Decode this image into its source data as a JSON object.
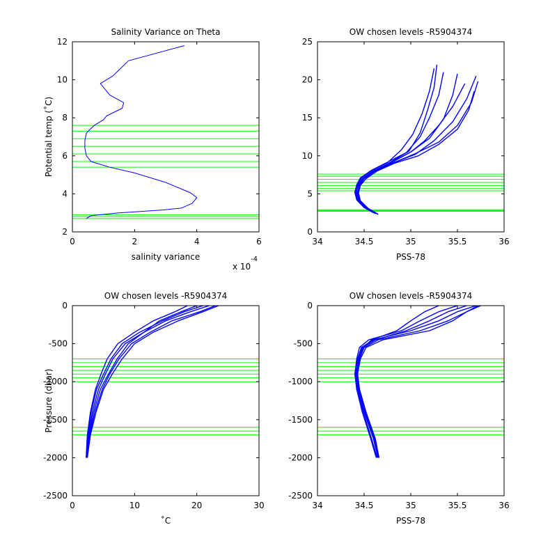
{
  "colors": {
    "profile": "#0000ff",
    "levels": "#00ff00",
    "axis": "#000000"
  },
  "chart_data": [
    {
      "type": "line",
      "title": "Salinity Variance on Theta",
      "xlabel": "salinity variance",
      "ylabel": "Potential temp (˚C)",
      "exponent_base": "x 10",
      "exponent_power": "-4",
      "xlim": [
        0,
        6
      ],
      "ylim": [
        2,
        12
      ],
      "xticks": [
        0,
        2,
        4,
        6
      ],
      "yticks": [
        2,
        4,
        6,
        8,
        10,
        12
      ],
      "series": [
        {
          "x": [
            0.45,
            0.6,
            1.5,
            2.9,
            3.5,
            3.85,
            4.0,
            3.8,
            3.0,
            2.0,
            1.2,
            0.6,
            0.45,
            0.4,
            0.4,
            0.45,
            0.7,
            1.0,
            1.1,
            1.6,
            1.65,
            1.2,
            0.9,
            1.3,
            1.8,
            3.6
          ],
          "y": [
            2.7,
            2.85,
            3.0,
            3.15,
            3.25,
            3.5,
            3.8,
            4.05,
            4.6,
            5.1,
            5.4,
            5.7,
            6.0,
            6.4,
            6.8,
            7.2,
            7.6,
            7.9,
            8.1,
            8.5,
            8.8,
            9.2,
            9.8,
            10.2,
            11.0,
            11.8
          ]
        }
      ],
      "hlines": [
        2.7,
        2.8,
        2.9,
        5.4,
        5.7,
        6.1,
        6.5,
        6.9,
        7.3,
        7.6
      ]
    },
    {
      "type": "line",
      "title": "OW chosen levels -R5904374",
      "xlabel": "PSS-78",
      "xlim": [
        34,
        36
      ],
      "ylim": [
        0,
        25
      ],
      "xticks": [
        34,
        34.5,
        35,
        35.5,
        36
      ],
      "yticks": [
        0,
        5,
        10,
        15,
        20,
        25
      ],
      "series": [
        {
          "x": [
            34.65,
            34.55,
            34.45,
            34.42,
            34.43,
            34.48,
            34.6,
            34.78,
            35.0,
            35.15,
            35.3,
            35.45,
            35.58
          ],
          "y": [
            2.3,
            3.0,
            4.0,
            5.0,
            6.0,
            7.0,
            8.0,
            9.0,
            10.5,
            12.0,
            14.0,
            16.5,
            19.5
          ]
        },
        {
          "x": [
            34.6,
            34.5,
            34.42,
            34.4,
            34.42,
            34.46,
            34.58,
            34.74,
            34.95,
            35.1,
            35.2,
            35.3,
            35.35
          ],
          "y": [
            2.5,
            3.2,
            4.2,
            5.2,
            6.2,
            7.1,
            8.1,
            9.1,
            10.4,
            12.5,
            15.0,
            18.0,
            21.0
          ]
        },
        {
          "x": [
            34.62,
            34.52,
            34.45,
            34.43,
            34.45,
            34.5,
            34.62,
            34.8,
            35.05,
            35.25,
            35.45,
            35.6,
            35.7
          ],
          "y": [
            2.4,
            3.1,
            4.1,
            5.1,
            6.1,
            7.0,
            8.0,
            9.0,
            10.2,
            12.0,
            14.5,
            17.5,
            20.5
          ]
        },
        {
          "x": [
            34.63,
            34.53,
            34.44,
            34.41,
            34.44,
            34.49,
            34.6,
            34.76,
            34.98,
            35.1,
            35.18,
            35.25,
            35.28
          ],
          "y": [
            2.4,
            3.1,
            4.1,
            5.1,
            6.1,
            7.0,
            8.0,
            9.0,
            10.6,
            13.0,
            16.0,
            19.0,
            22.0
          ]
        },
        {
          "x": [
            34.64,
            34.54,
            34.46,
            34.44,
            34.46,
            34.52,
            34.64,
            34.82,
            35.08,
            35.3,
            35.5,
            35.62,
            35.68
          ],
          "y": [
            2.4,
            3.1,
            4.1,
            5.1,
            6.1,
            7.0,
            8.0,
            9.0,
            10.0,
            11.5,
            13.5,
            16.0,
            18.5
          ]
        },
        {
          "x": [
            34.61,
            34.51,
            34.43,
            34.4,
            34.43,
            34.47,
            34.59,
            34.75,
            34.9,
            35.02,
            35.12,
            35.2,
            35.25
          ],
          "y": [
            2.5,
            3.2,
            4.2,
            5.2,
            6.2,
            7.1,
            8.1,
            9.1,
            10.8,
            12.8,
            15.5,
            18.5,
            21.5
          ]
        },
        {
          "x": [
            34.65,
            34.55,
            34.46,
            34.43,
            34.45,
            34.5,
            34.62,
            34.8,
            35.05,
            35.3,
            35.5,
            35.65,
            35.72
          ],
          "y": [
            2.3,
            3.0,
            4.0,
            5.0,
            6.0,
            7.0,
            8.0,
            9.0,
            10.3,
            11.8,
            14.0,
            17.0,
            19.8
          ]
        },
        {
          "x": [
            34.62,
            34.52,
            34.44,
            34.41,
            34.44,
            34.48,
            34.6,
            34.77,
            35.0,
            35.2,
            35.35,
            35.45,
            35.5
          ],
          "y": [
            2.4,
            3.1,
            4.1,
            5.1,
            6.1,
            7.0,
            8.0,
            9.0,
            10.5,
            12.3,
            14.8,
            18.0,
            20.8
          ]
        }
      ],
      "hlines": [
        2.7,
        2.8,
        2.9,
        5.4,
        5.7,
        6.1,
        6.5,
        6.9,
        7.3,
        7.6
      ]
    },
    {
      "type": "line",
      "title": "OW chosen levels -R5904374",
      "xlabel": "˚C",
      "ylabel": "Pressure (dbar)",
      "xlim": [
        0,
        30
      ],
      "ylim": [
        -2500,
        0
      ],
      "xticks": [
        0,
        10,
        20,
        30
      ],
      "yticks": [
        -2500,
        -2000,
        -1500,
        -1000,
        -500,
        0
      ],
      "series": [
        {
          "x": [
            2.3,
            2.6,
            3.2,
            4.2,
            5.3,
            6.5,
            8.5,
            11.5,
            15.0,
            19.0,
            22.0
          ],
          "y": [
            -2000,
            -1700,
            -1400,
            -1100,
            -900,
            -700,
            -500,
            -350,
            -200,
            -80,
            0
          ]
        },
        {
          "x": [
            2.4,
            2.8,
            3.6,
            4.8,
            6.0,
            7.5,
            9.5,
            12.5,
            16.0,
            20.5,
            23.0
          ],
          "y": [
            -2000,
            -1700,
            -1400,
            -1100,
            -900,
            -700,
            -500,
            -350,
            -200,
            -80,
            0
          ]
        },
        {
          "x": [
            2.2,
            2.4,
            2.9,
            3.7,
            4.6,
            5.6,
            7.3,
            10.0,
            13.0,
            16.5,
            18.5
          ],
          "y": [
            -2000,
            -1700,
            -1400,
            -1100,
            -900,
            -700,
            -500,
            -350,
            -200,
            -80,
            0
          ]
        },
        {
          "x": [
            2.3,
            2.7,
            3.4,
            4.5,
            5.8,
            7.2,
            9.0,
            11.5,
            14.0,
            17.5,
            20.0
          ],
          "y": [
            -2000,
            -1700,
            -1400,
            -1100,
            -900,
            -700,
            -500,
            -350,
            -200,
            -80,
            0
          ]
        },
        {
          "x": [
            2.3,
            2.5,
            3.0,
            3.9,
            5.0,
            6.2,
            8.0,
            10.8,
            14.5,
            18.0,
            21.0
          ],
          "y": [
            -2000,
            -1700,
            -1400,
            -1100,
            -900,
            -700,
            -500,
            -350,
            -200,
            -80,
            0
          ]
        },
        {
          "x": [
            2.4,
            2.9,
            3.8,
            5.0,
            6.4,
            8.0,
            10.0,
            13.0,
            17.0,
            21.0,
            23.5
          ],
          "y": [
            -2000,
            -1700,
            -1400,
            -1100,
            -900,
            -700,
            -500,
            -350,
            -200,
            -80,
            0
          ]
        }
      ],
      "hlines": [
        -700,
        -750,
        -800,
        -850,
        -900,
        -950,
        -1000,
        -1600,
        -1650,
        -1700
      ]
    },
    {
      "type": "line",
      "title": "OW chosen levels -R5904374",
      "xlabel": "PSS-78",
      "xlim": [
        34,
        36
      ],
      "ylim": [
        -2500,
        0
      ],
      "xticks": [
        34,
        34.5,
        35,
        35.5,
        36
      ],
      "yticks": [
        -2500,
        -2000,
        -1500,
        -1000,
        -500,
        0
      ],
      "series": [
        {
          "x": [
            34.65,
            34.6,
            34.5,
            34.43,
            34.42,
            34.43,
            34.47,
            34.6,
            35.0,
            35.3,
            35.5,
            35.7
          ],
          "y": [
            -2000,
            -1750,
            -1400,
            -1100,
            -900,
            -700,
            -550,
            -450,
            -330,
            -200,
            -80,
            0
          ]
        },
        {
          "x": [
            34.63,
            34.57,
            34.48,
            34.42,
            34.4,
            34.42,
            34.45,
            34.55,
            34.9,
            35.1,
            35.3,
            35.5
          ],
          "y": [
            -2000,
            -1750,
            -1400,
            -1100,
            -900,
            -700,
            -550,
            -450,
            -330,
            -200,
            -80,
            0
          ]
        },
        {
          "x": [
            34.66,
            34.62,
            34.52,
            34.45,
            34.43,
            34.45,
            34.5,
            34.65,
            35.1,
            35.4,
            35.6,
            35.75
          ],
          "y": [
            -2000,
            -1750,
            -1400,
            -1100,
            -900,
            -700,
            -550,
            -450,
            -330,
            -200,
            -80,
            0
          ]
        },
        {
          "x": [
            34.64,
            34.58,
            34.49,
            34.43,
            34.41,
            34.43,
            34.48,
            34.62,
            34.95,
            35.2,
            35.4,
            35.6
          ],
          "y": [
            -2000,
            -1750,
            -1400,
            -1100,
            -900,
            -700,
            -550,
            -450,
            -330,
            -200,
            -80,
            0
          ]
        },
        {
          "x": [
            34.65,
            34.6,
            34.51,
            34.44,
            34.42,
            34.44,
            34.49,
            34.58,
            34.85,
            35.0,
            35.15,
            35.3
          ],
          "y": [
            -2000,
            -1750,
            -1400,
            -1100,
            -900,
            -700,
            -550,
            -450,
            -330,
            -200,
            -80,
            0
          ]
        },
        {
          "x": [
            34.66,
            34.61,
            34.52,
            34.45,
            34.43,
            34.46,
            34.52,
            34.7,
            35.2,
            35.45,
            35.6,
            35.72
          ],
          "y": [
            -2000,
            -1750,
            -1400,
            -1100,
            -900,
            -700,
            -550,
            -450,
            -330,
            -200,
            -80,
            0
          ]
        }
      ],
      "hlines": [
        -700,
        -750,
        -800,
        -850,
        -900,
        -950,
        -1000,
        -1600,
        -1650,
        -1700
      ]
    }
  ]
}
